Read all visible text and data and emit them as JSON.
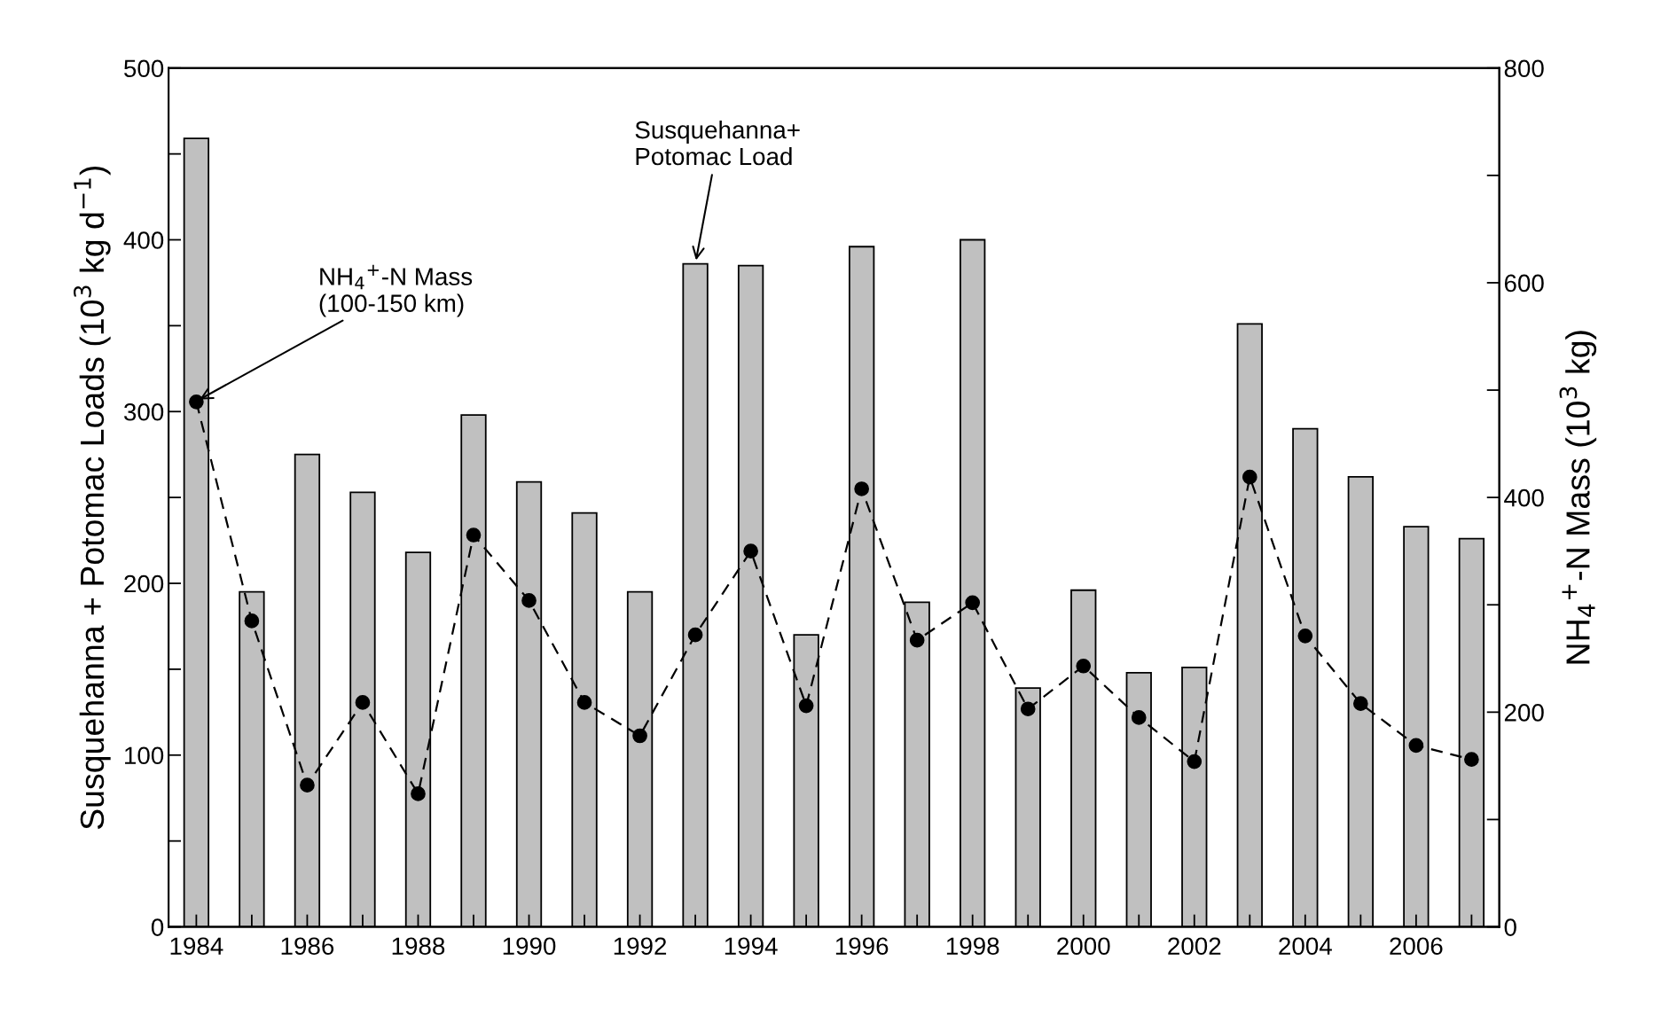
{
  "chart_data": {
    "type": "bar",
    "ylabel": "Susquehanna + Potomac Loads (10$^{3}$ kg d$^{−1}$)",
    "y2label": "NH$_{4}$$^{+}$-N Mass (10$^{3}$ kg)",
    "x": [
      1984,
      1985,
      1986,
      1987,
      1988,
      1989,
      1990,
      1991,
      1992,
      1993,
      1994,
      1995,
      1996,
      1997,
      1998,
      1999,
      2000,
      2001,
      2002,
      2003,
      2004,
      2005,
      2006,
      2007
    ],
    "series": [
      {
        "color": "#c0c0c0",
        "values": [
          459,
          195,
          275,
          253,
          218,
          298,
          259,
          241,
          195,
          386,
          385,
          170,
          396,
          189,
          400,
          139,
          196,
          148,
          151,
          351,
          290,
          262,
          233,
          226
        ]
      },
      {
        "type": "line",
        "axis": "y2",
        "color": "#000000",
        "marker": "circle",
        "line_style": "dashed",
        "values": [
          489,
          285,
          132,
          209,
          124,
          365,
          304,
          209,
          178,
          272,
          350,
          206,
          408,
          267,
          302,
          203,
          243,
          195,
          154,
          419,
          271,
          208,
          169,
          156
        ]
      }
    ],
    "xlim": [
      1983.5,
      2007.5
    ],
    "xticks": [
      1984,
      {
        "value": 1985,
        "label": null
      },
      1986,
      {
        "value": 1987,
        "label": null
      },
      1988,
      {
        "value": 1989,
        "label": null
      },
      1990,
      {
        "value": 1991,
        "label": null
      },
      1992,
      {
        "value": 1993,
        "label": null
      },
      1994,
      {
        "value": 1995,
        "label": null
      },
      1996,
      {
        "value": 1997,
        "label": null
      },
      1998,
      {
        "value": 1999,
        "label": null
      },
      2000,
      {
        "value": 2001,
        "label": null
      },
      2002,
      {
        "value": 2003,
        "label": null
      },
      2004,
      {
        "value": 2005,
        "label": null
      },
      2006,
      {
        "value": 2007,
        "label": null
      }
    ],
    "ylim": [
      0,
      500
    ],
    "yticks": [
      0,
      {
        "value": 50,
        "label": null
      },
      100,
      {
        "value": 150,
        "label": null
      },
      200,
      {
        "value": 250,
        "label": null
      },
      300,
      {
        "value": 350,
        "label": null
      },
      400,
      {
        "value": 450,
        "label": null
      },
      500
    ],
    "y2lim": [
      0,
      800
    ],
    "y2ticks": [
      0,
      {
        "value": 100,
        "label": null
      },
      200,
      {
        "value": 300,
        "label": null
      },
      400,
      {
        "value": 500,
        "label": null
      },
      600,
      {
        "value": 700,
        "label": null
      },
      800
    ],
    "annotations": [
      {
        "text": "NH$_{4}$$^{+}$-N Mass\n(100-150 km)",
        "x": 1984,
        "y": 306
      },
      {
        "text": "Susquehanna+\nPotomac Load",
        "x": 1993,
        "y": 386
      }
    ],
    "grid": false,
    "legend": false
  }
}
